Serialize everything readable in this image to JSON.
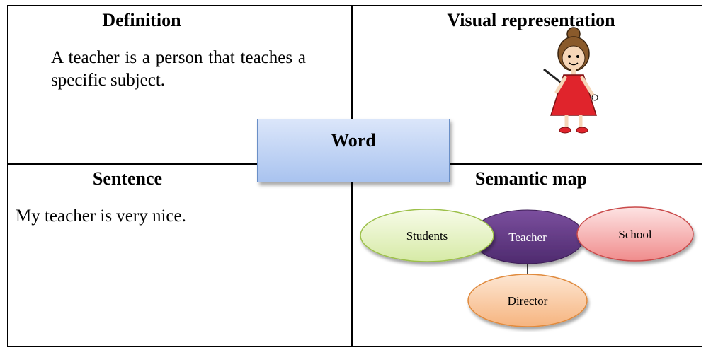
{
  "definition": {
    "title": "Definition",
    "text": "A teacher is a person that teaches a specific subject."
  },
  "visual": {
    "title": "Visual representation"
  },
  "word": "Word",
  "sentence": {
    "title": "Sentence",
    "text": "My teacher is very nice."
  },
  "semantic_map": {
    "title": "Semantic map",
    "nodes": [
      {
        "label": "Teacher"
      },
      {
        "label": "Students"
      },
      {
        "label": "School"
      },
      {
        "label": "Director"
      }
    ]
  }
}
